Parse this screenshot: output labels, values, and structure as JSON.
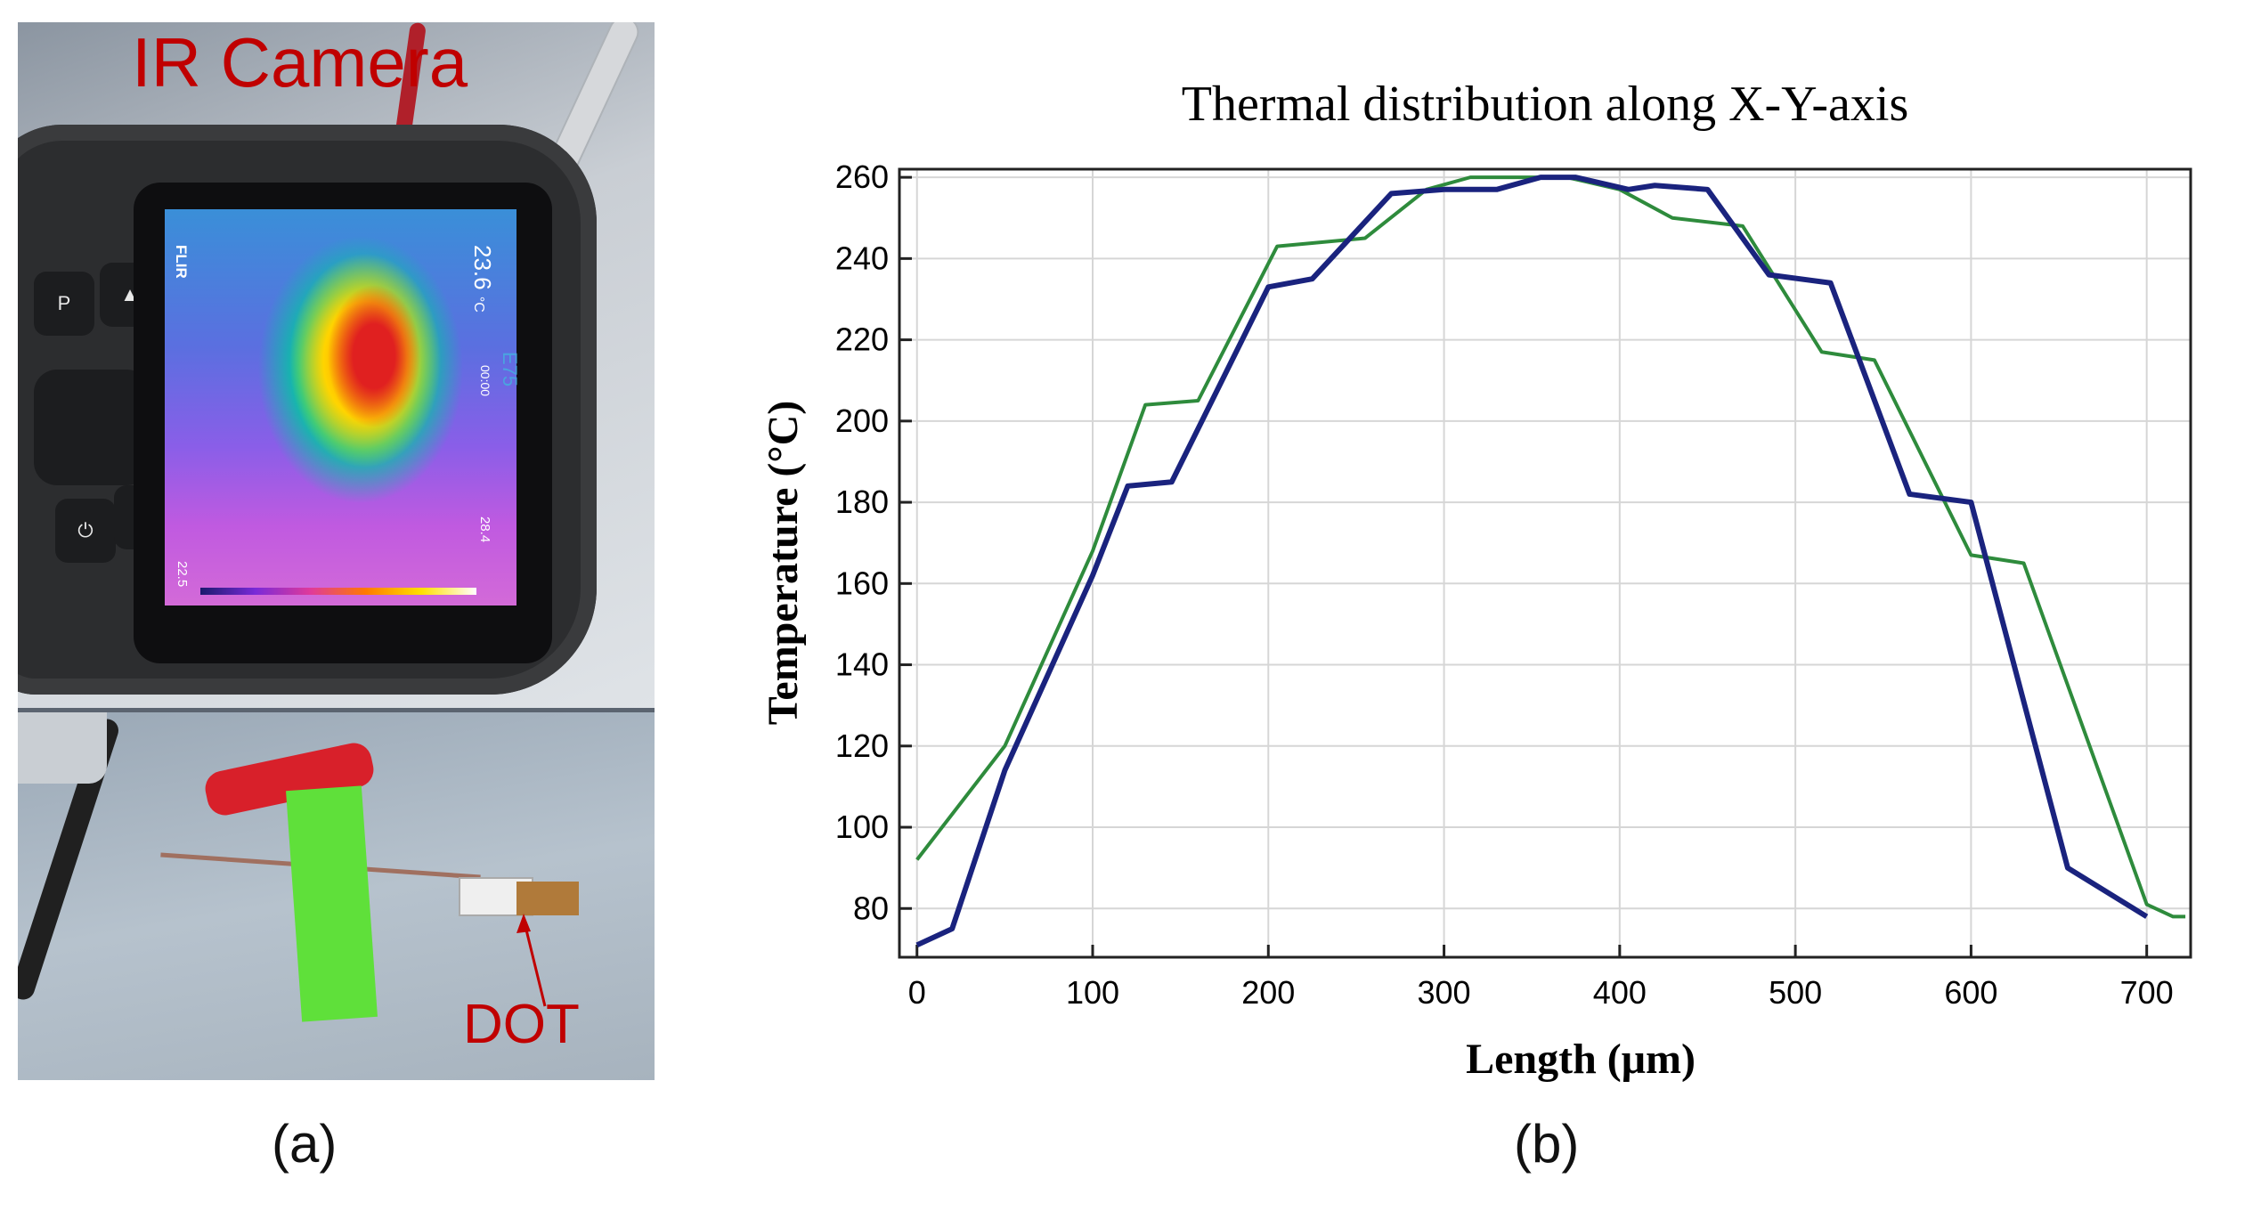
{
  "panel_a": {
    "caption": "(a)",
    "ir_label": "IR Camera",
    "dot_label": "DOT",
    "camera": {
      "brand": "FLIR",
      "model": "E75",
      "temp_reading": "23.6",
      "temp_unit": "°C",
      "time": "00:00",
      "scale_min": "22.5",
      "scale_max": "28.4",
      "button_p": "P"
    }
  },
  "panel_b": {
    "caption": "(b)"
  },
  "chart_data": {
    "type": "line",
    "title": "Thermal distribution along X-Y-axis",
    "xlabel": "Length (μm)",
    "ylabel": "Temperature (°C)",
    "xlim": [
      -10,
      725
    ],
    "ylim": [
      68,
      262
    ],
    "xticks": [
      0,
      100,
      200,
      300,
      400,
      500,
      600,
      700
    ],
    "yticks": [
      80,
      100,
      120,
      140,
      160,
      180,
      200,
      220,
      240,
      260
    ],
    "grid": true,
    "series": [
      {
        "color": "#2e8b3c",
        "x": [
          0,
          50,
          100,
          130,
          160,
          205,
          255,
          290,
          315,
          340,
          370,
          400,
          430,
          470,
          515,
          545,
          600,
          630,
          700,
          715,
          722
        ],
        "y": [
          92,
          120,
          168,
          204,
          205,
          243,
          245,
          257,
          260,
          260,
          260,
          257,
          250,
          248,
          217,
          215,
          167,
          165,
          81,
          78,
          78
        ]
      },
      {
        "color": "#1a237e",
        "x": [
          0,
          20,
          50,
          100,
          120,
          145,
          200,
          225,
          270,
          300,
          330,
          355,
          375,
          405,
          420,
          450,
          485,
          520,
          565,
          600,
          655,
          700
        ],
        "y": [
          71,
          75,
          114,
          162,
          184,
          185,
          233,
          235,
          256,
          257,
          257,
          260,
          260,
          257,
          258,
          257,
          236,
          234,
          182,
          180,
          90,
          78
        ]
      }
    ]
  }
}
